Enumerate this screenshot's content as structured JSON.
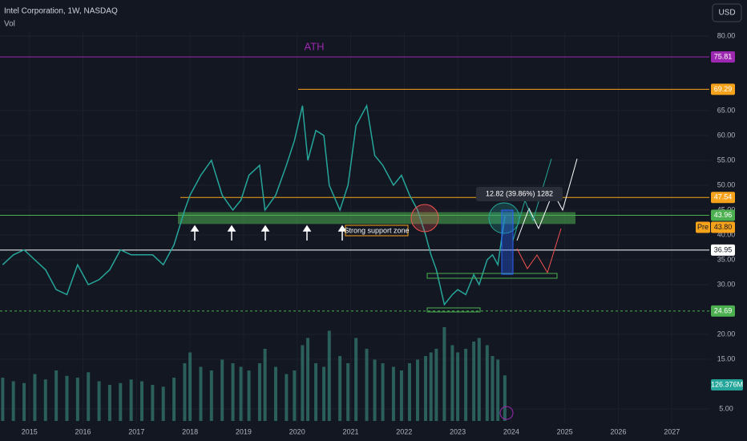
{
  "chart_data": {
    "type": "line",
    "title": "Intel Corporation, 1W, NASDAQ",
    "subtitle": "Vol",
    "currency": "USD",
    "x": [
      2014.5,
      2014.7,
      2014.9,
      2015.1,
      2015.3,
      2015.5,
      2015.7,
      2015.9,
      2016.1,
      2016.3,
      2016.5,
      2016.7,
      2016.9,
      2017.1,
      2017.3,
      2017.5,
      2017.7,
      2017.9,
      2018.0,
      2018.2,
      2018.4,
      2018.6,
      2018.8,
      2018.95,
      2019.1,
      2019.3,
      2019.4,
      2019.6,
      2019.8,
      2019.95,
      2020.1,
      2020.2,
      2020.35,
      2020.5,
      2020.6,
      2020.8,
      2020.95,
      2021.1,
      2021.3,
      2021.45,
      2021.6,
      2021.8,
      2021.95,
      2022.1,
      2022.25,
      2022.4,
      2022.5,
      2022.6,
      2022.75,
      2022.9,
      2023.0,
      2023.15,
      2023.3,
      2023.4,
      2023.55,
      2023.65,
      2023.75,
      2023.88
    ],
    "values": [
      34,
      36,
      37,
      35,
      33,
      29,
      28,
      34,
      30,
      31,
      33,
      37,
      36,
      36,
      36,
      34,
      38,
      45,
      48,
      52,
      55,
      48,
      45,
      47,
      52,
      54,
      45,
      48,
      54,
      59,
      66,
      55,
      61,
      60,
      50,
      45,
      50,
      62,
      66,
      56,
      54,
      50,
      52,
      48,
      45,
      40,
      36,
      33,
      26,
      28,
      29,
      28,
      32,
      30,
      35,
      36,
      34,
      43.8
    ],
    "color": "#26a69a",
    "volume": [
      120,
      110,
      105,
      130,
      115,
      140,
      125,
      120,
      135,
      110,
      100,
      105,
      115,
      110,
      100,
      95,
      120,
      160,
      190,
      150,
      140,
      170,
      160,
      150,
      140,
      160,
      200,
      150,
      130,
      140,
      210,
      230,
      160,
      150,
      250,
      180,
      160,
      230,
      200,
      170,
      160,
      150,
      140,
      160,
      170,
      180,
      190,
      200,
      260,
      210,
      190,
      200,
      220,
      230,
      210,
      180,
      170,
      126.376
    ],
    "volume_color": "#2b5f5b",
    "volume_lim": [
      0,
      300
    ],
    "volume_last_label": {
      "value": 126.376,
      "label": "126.376M"
    },
    "xlim": [
      2014.45,
      2027.7
    ],
    "xticks": [
      2015,
      2016,
      2017,
      2018,
      2019,
      2020,
      2021,
      2022,
      2023,
      2024,
      2025,
      2026,
      2027
    ],
    "ylim": [
      5,
      80
    ],
    "yticks": [
      {
        "value": 80,
        "label": "80.00"
      },
      {
        "value": 65,
        "label": "65.00"
      },
      {
        "value": 60,
        "label": "60.00"
      },
      {
        "value": 55,
        "label": "55.00"
      },
      {
        "value": 50,
        "label": "50.00"
      },
      {
        "value": 45,
        "label": "45.00"
      },
      {
        "value": 40,
        "label": "40.00"
      },
      {
        "value": 35,
        "label": "35.00"
      },
      {
        "value": 30,
        "label": "30.00"
      },
      {
        "value": 20,
        "label": "20.00"
      },
      {
        "value": 15,
        "label": "15.00"
      },
      {
        "value": 5,
        "label": "5.00"
      }
    ],
    "grid": true,
    "price_levels": [
      {
        "value": 75.81,
        "color": "#9c27b0",
        "text": "ATH"
      },
      {
        "value": 69.29,
        "color": "#f7a21b"
      },
      {
        "value": 47.54,
        "color": "#f7a21b"
      },
      {
        "value": 43.96,
        "color": "#4caf50"
      },
      {
        "value": 36.95,
        "color": "#ffffff"
      },
      {
        "value": 24.69,
        "color": "#4caf50",
        "dashed": true
      }
    ],
    "pre_market": {
      "label": "Pre",
      "price": {
        "value": 43.8,
        "label": "43.80"
      },
      "color": "#f7a21b"
    },
    "support_zone": [
      42.2,
      44.6
    ],
    "annotations": {
      "support": "Strong support zone",
      "measure": "12.82 (39.86%) 1282"
    }
  }
}
